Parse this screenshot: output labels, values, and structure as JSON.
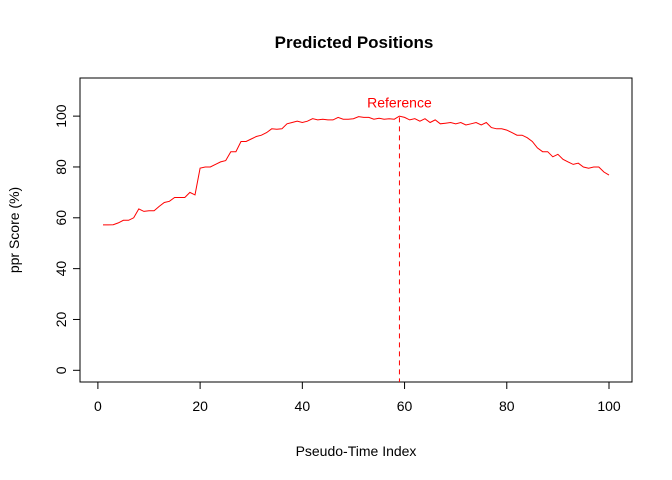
{
  "chart_data": {
    "type": "line",
    "title": "Predicted Positions",
    "xlabel": "Pseudo-Time Index",
    "ylabel": "ppr Score (%)",
    "xlim": [
      -3.5,
      104.5
    ],
    "ylim": [
      -4.6,
      115
    ],
    "x_ticks": [
      0,
      20,
      40,
      60,
      80,
      100
    ],
    "y_ticks": [
      0,
      20,
      40,
      60,
      80,
      100
    ],
    "grid": false,
    "line_color": "#ff0000",
    "reference": {
      "label": "Reference",
      "x": 59,
      "color": "#ff0000",
      "style": "dashed"
    },
    "series": [
      {
        "x": [
          1,
          2,
          3,
          4,
          5,
          6,
          7,
          8,
          9,
          10,
          11,
          12,
          13,
          14,
          15,
          16,
          17,
          18,
          19,
          20,
          21,
          22,
          23,
          24,
          25,
          26,
          27,
          28,
          29,
          30,
          31,
          32,
          33,
          34,
          35,
          36,
          37,
          38,
          39,
          40,
          41,
          42,
          43,
          44,
          45,
          46,
          47,
          48,
          49,
          50,
          51,
          52,
          53,
          54,
          55,
          56,
          57,
          58,
          59,
          60,
          61,
          62,
          63,
          64,
          65,
          66,
          67,
          68,
          69,
          70,
          71,
          72,
          73,
          74,
          75,
          76,
          77,
          78,
          79,
          80,
          81,
          82,
          83,
          84,
          85,
          86,
          87,
          88,
          89,
          90,
          91,
          92,
          93,
          94,
          95,
          96,
          97,
          98,
          99,
          100
        ],
        "values": [
          57.2,
          57.2,
          57.3,
          58,
          59,
          59,
          60,
          63.5,
          62.5,
          62.8,
          62.8,
          64.5,
          66,
          66.5,
          68,
          68,
          68,
          70,
          69,
          79.5,
          80,
          80,
          81,
          82,
          82.5,
          86,
          86,
          90,
          90,
          91,
          92,
          92.5,
          93.5,
          95,
          94.8,
          95,
          97,
          97.5,
          98,
          97.5,
          98,
          99,
          98.5,
          98.8,
          98.5,
          98.5,
          99.5,
          98.8,
          98.8,
          99,
          99.8,
          99.5,
          99.5,
          98.8,
          99.2,
          98.8,
          99,
          98.8,
          100,
          99.5,
          98.5,
          99,
          98,
          99,
          97.5,
          98.5,
          97,
          97.2,
          97.5,
          97,
          97.5,
          96.5,
          97,
          97.5,
          96.5,
          97.5,
          95.5,
          95,
          95,
          94.5,
          93.5,
          92.5,
          92.5,
          91.5,
          90,
          87.5,
          86,
          86,
          84,
          85,
          83,
          82,
          81,
          81.5,
          80,
          79.5,
          80,
          80,
          78,
          76.8
        ]
      }
    ]
  }
}
